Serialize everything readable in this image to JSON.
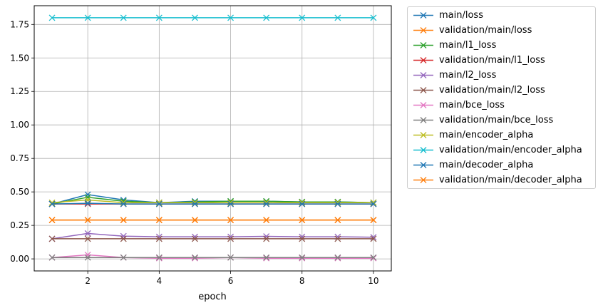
{
  "chart_data": {
    "type": "line",
    "title": "",
    "xlabel": "epoch",
    "ylabel": "",
    "xlim": [
      0.5,
      10.5
    ],
    "ylim": [
      -0.09,
      1.89
    ],
    "xticks": [
      2,
      4,
      6,
      8,
      10
    ],
    "yticks": [
      0.0,
      0.25,
      0.5,
      0.75,
      1.0,
      1.25,
      1.5,
      1.75
    ],
    "grid": true,
    "legend_position": "outside-upper-right",
    "marker": "x",
    "x": [
      1,
      2,
      3,
      4,
      5,
      6,
      7,
      8,
      9,
      10
    ],
    "series": [
      {
        "name": "main/loss",
        "color": "#1f77b4",
        "values": [
          0.41,
          0.48,
          0.44,
          0.42,
          0.43,
          0.43,
          0.43,
          0.425,
          0.425,
          0.42
        ]
      },
      {
        "name": "validation/main/loss",
        "color": "#ff7f0e",
        "values": [
          0.29,
          0.29,
          0.29,
          0.29,
          0.29,
          0.29,
          0.29,
          0.29,
          0.29,
          0.29
        ]
      },
      {
        "name": "main/l1_loss",
        "color": "#2ca02c",
        "values": [
          0.41,
          0.46,
          0.43,
          0.42,
          0.425,
          0.43,
          0.43,
          0.425,
          0.425,
          0.42
        ]
      },
      {
        "name": "validation/main/l1_loss",
        "color": "#d62728",
        "values": [
          0.41,
          0.41,
          0.41,
          0.41,
          0.41,
          0.41,
          0.41,
          0.41,
          0.41,
          0.41
        ]
      },
      {
        "name": "main/l2_loss",
        "color": "#9467bd",
        "values": [
          0.15,
          0.19,
          0.17,
          0.165,
          0.165,
          0.165,
          0.168,
          0.165,
          0.165,
          0.162
        ]
      },
      {
        "name": "validation/main/l2_loss",
        "color": "#8c564b",
        "values": [
          0.15,
          0.15,
          0.15,
          0.15,
          0.15,
          0.15,
          0.15,
          0.15,
          0.15,
          0.15
        ]
      },
      {
        "name": "main/bce_loss",
        "color": "#e377c2",
        "values": [
          0.01,
          0.03,
          0.01,
          0.005,
          0.005,
          0.01,
          0.005,
          0.005,
          0.005,
          0.005
        ]
      },
      {
        "name": "validation/main/bce_loss",
        "color": "#7f7f7f",
        "values": [
          0.01,
          0.01,
          0.01,
          0.01,
          0.01,
          0.01,
          0.01,
          0.01,
          0.01,
          0.01
        ]
      },
      {
        "name": "main/encoder_alpha",
        "color": "#bcbd22",
        "values": [
          0.42,
          0.44,
          0.42,
          0.42,
          0.42,
          0.42,
          0.42,
          0.42,
          0.42,
          0.42
        ]
      },
      {
        "name": "validation/main/encoder_alpha",
        "color": "#17becf",
        "values": [
          1.8,
          1.8,
          1.8,
          1.8,
          1.8,
          1.8,
          1.8,
          1.8,
          1.8,
          1.8
        ]
      },
      {
        "name": "main/decoder_alpha",
        "color": "#1f77b4",
        "values": [
          0.41,
          0.415,
          0.41,
          0.41,
          0.41,
          0.41,
          0.41,
          0.41,
          0.41,
          0.41
        ]
      },
      {
        "name": "validation/main/decoder_alpha",
        "color": "#ff7f0e",
        "values": [
          0.29,
          0.29,
          0.29,
          0.29,
          0.29,
          0.29,
          0.29,
          0.29,
          0.29,
          0.29
        ]
      }
    ]
  }
}
